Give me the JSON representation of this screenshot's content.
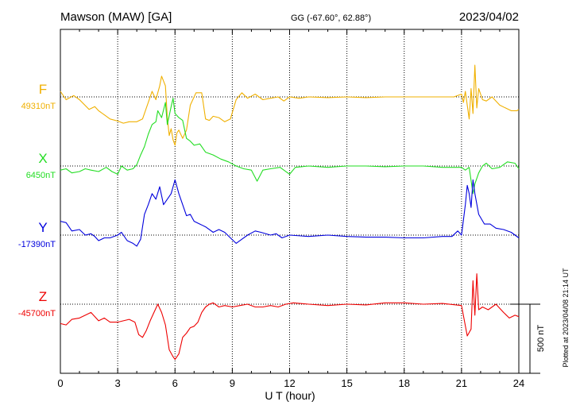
{
  "header": {
    "station": "Mawson (MAW)  [GA]",
    "coords": "GG (-67.60°,  62.88°)",
    "date": "2023/04/02"
  },
  "plotted_note": "Plotted at 2023/04/08 21:14 UT",
  "scale_label": "500 nT",
  "chart_data": {
    "type": "line",
    "xlabel": "U T (hour)",
    "xlim": [
      0,
      24
    ],
    "xticks": [
      "0",
      "3",
      "6",
      "9",
      "12",
      "15",
      "18",
      "21",
      "24"
    ],
    "scale_bar_nT": 500,
    "grid": "dotted vertical every 3 h, dotted baseline per component",
    "series": [
      {
        "name": "F",
        "baseline_label": "49310nT",
        "color": "#f0b000",
        "points": [
          [
            0,
            40
          ],
          [
            0.3,
            -20
          ],
          [
            0.7,
            10
          ],
          [
            1.0,
            -20
          ],
          [
            1.5,
            -90
          ],
          [
            1.8,
            -70
          ],
          [
            2.0,
            -100
          ],
          [
            2.3,
            -130
          ],
          [
            2.6,
            -160
          ],
          [
            3.0,
            -175
          ],
          [
            3.3,
            -190
          ],
          [
            3.6,
            -180
          ],
          [
            4.0,
            -180
          ],
          [
            4.3,
            -160
          ],
          [
            4.6,
            -40
          ],
          [
            4.8,
            40
          ],
          [
            5.0,
            -20
          ],
          [
            5.2,
            80
          ],
          [
            5.3,
            150
          ],
          [
            5.5,
            80
          ],
          [
            5.6,
            -150
          ],
          [
            5.7,
            -280
          ],
          [
            5.8,
            -230
          ],
          [
            5.9,
            -310
          ],
          [
            6.0,
            -350
          ],
          [
            6.1,
            -260
          ],
          [
            6.2,
            -240
          ],
          [
            6.4,
            -300
          ],
          [
            6.6,
            -240
          ],
          [
            6.8,
            -60
          ],
          [
            7.1,
            30
          ],
          [
            7.4,
            30
          ],
          [
            7.6,
            -160
          ],
          [
            7.8,
            -170
          ],
          [
            8.0,
            -140
          ],
          [
            8.3,
            -150
          ],
          [
            8.6,
            -180
          ],
          [
            8.9,
            -160
          ],
          [
            9.2,
            -20
          ],
          [
            9.5,
            30
          ],
          [
            9.8,
            -10
          ],
          [
            10.2,
            20
          ],
          [
            10.6,
            -20
          ],
          [
            11.0,
            -10
          ],
          [
            11.4,
            0
          ],
          [
            11.7,
            -30
          ],
          [
            12.0,
            0
          ],
          [
            12.5,
            -10
          ],
          [
            13.0,
            0
          ],
          [
            14.0,
            -5
          ],
          [
            15.0,
            0
          ],
          [
            16.0,
            -5
          ],
          [
            17.0,
            0
          ],
          [
            18.0,
            0
          ],
          [
            19.0,
            0
          ],
          [
            20.0,
            0
          ],
          [
            20.6,
            0
          ],
          [
            21.0,
            20
          ],
          [
            21.1,
            -40
          ],
          [
            21.2,
            40
          ],
          [
            21.4,
            -160
          ],
          [
            21.5,
            60
          ],
          [
            21.6,
            -120
          ],
          [
            21.7,
            230
          ],
          [
            21.8,
            -80
          ],
          [
            21.9,
            60
          ],
          [
            22.1,
            -20
          ],
          [
            22.3,
            -30
          ],
          [
            22.6,
            0
          ],
          [
            23.0,
            -60
          ],
          [
            23.3,
            -80
          ],
          [
            23.6,
            -100
          ],
          [
            23.9,
            -100
          ],
          [
            24.0,
            -90
          ]
        ]
      },
      {
        "name": "X",
        "baseline_label": "6450nT",
        "color": "#22dd22",
        "points": [
          [
            0,
            -30
          ],
          [
            0.3,
            -20
          ],
          [
            0.6,
            -50
          ],
          [
            1.0,
            -40
          ],
          [
            1.3,
            -20
          ],
          [
            1.6,
            -30
          ],
          [
            2.0,
            -40
          ],
          [
            2.4,
            -10
          ],
          [
            2.7,
            -40
          ],
          [
            3.0,
            -60
          ],
          [
            3.2,
            0
          ],
          [
            3.5,
            -30
          ],
          [
            3.8,
            -20
          ],
          [
            4.0,
            10
          ],
          [
            4.2,
            80
          ],
          [
            4.4,
            140
          ],
          [
            4.6,
            230
          ],
          [
            4.8,
            300
          ],
          [
            5.0,
            320
          ],
          [
            5.1,
            400
          ],
          [
            5.3,
            350
          ],
          [
            5.5,
            460
          ],
          [
            5.6,
            300
          ],
          [
            5.8,
            430
          ],
          [
            5.9,
            490
          ],
          [
            6.0,
            380
          ],
          [
            6.2,
            350
          ],
          [
            6.4,
            330
          ],
          [
            6.6,
            200
          ],
          [
            6.8,
            180
          ],
          [
            7.0,
            150
          ],
          [
            7.3,
            160
          ],
          [
            7.6,
            100
          ],
          [
            8.0,
            80
          ],
          [
            8.4,
            50
          ],
          [
            8.8,
            30
          ],
          [
            9.2,
            0
          ],
          [
            9.6,
            -20
          ],
          [
            10.0,
            -30
          ],
          [
            10.3,
            -110
          ],
          [
            10.6,
            -30
          ],
          [
            11.0,
            -20
          ],
          [
            11.5,
            -10
          ],
          [
            12.0,
            -60
          ],
          [
            12.3,
            -10
          ],
          [
            13.0,
            0
          ],
          [
            14.0,
            -10
          ],
          [
            15.0,
            0
          ],
          [
            16.0,
            0
          ],
          [
            17.0,
            -5
          ],
          [
            18.0,
            0
          ],
          [
            19.0,
            0
          ],
          [
            20.0,
            -10
          ],
          [
            21.0,
            -10
          ],
          [
            21.2,
            -30
          ],
          [
            21.4,
            -10
          ],
          [
            21.6,
            -200
          ],
          [
            21.7,
            -130
          ],
          [
            21.9,
            -50
          ],
          [
            22.1,
            0
          ],
          [
            22.3,
            20
          ],
          [
            22.6,
            -20
          ],
          [
            23.0,
            -10
          ],
          [
            23.4,
            30
          ],
          [
            23.8,
            20
          ],
          [
            24.0,
            -20
          ]
        ]
      },
      {
        "name": "Y",
        "baseline_label": "-17390nT",
        "color": "#0000dd",
        "points": [
          [
            0,
            100
          ],
          [
            0.3,
            90
          ],
          [
            0.6,
            30
          ],
          [
            1.0,
            40
          ],
          [
            1.3,
            0
          ],
          [
            1.6,
            10
          ],
          [
            1.8,
            -10
          ],
          [
            2.0,
            -40
          ],
          [
            2.3,
            -20
          ],
          [
            2.6,
            -20
          ],
          [
            3.0,
            0
          ],
          [
            3.2,
            20
          ],
          [
            3.5,
            -40
          ],
          [
            3.8,
            -60
          ],
          [
            4.0,
            -80
          ],
          [
            4.2,
            -30
          ],
          [
            4.4,
            150
          ],
          [
            4.6,
            220
          ],
          [
            4.8,
            300
          ],
          [
            5.0,
            260
          ],
          [
            5.2,
            350
          ],
          [
            5.4,
            220
          ],
          [
            5.6,
            260
          ],
          [
            5.8,
            300
          ],
          [
            6.0,
            400
          ],
          [
            6.2,
            300
          ],
          [
            6.4,
            220
          ],
          [
            6.6,
            140
          ],
          [
            6.8,
            150
          ],
          [
            7.0,
            100
          ],
          [
            7.3,
            80
          ],
          [
            7.6,
            60
          ],
          [
            8.0,
            20
          ],
          [
            8.3,
            40
          ],
          [
            8.6,
            20
          ],
          [
            8.9,
            -20
          ],
          [
            9.2,
            -60
          ],
          [
            9.5,
            -30
          ],
          [
            9.8,
            0
          ],
          [
            10.2,
            30
          ],
          [
            10.5,
            20
          ],
          [
            11.0,
            0
          ],
          [
            11.3,
            10
          ],
          [
            11.6,
            -20
          ],
          [
            12.0,
            0
          ],
          [
            13.0,
            -10
          ],
          [
            14.0,
            0
          ],
          [
            15.0,
            -10
          ],
          [
            16.0,
            -15
          ],
          [
            17.0,
            -15
          ],
          [
            18.0,
            -20
          ],
          [
            19.0,
            -20
          ],
          [
            20.0,
            -10
          ],
          [
            20.5,
            -10
          ],
          [
            20.8,
            30
          ],
          [
            21.0,
            0
          ],
          [
            21.2,
            220
          ],
          [
            21.3,
            360
          ],
          [
            21.4,
            300
          ],
          [
            21.5,
            200
          ],
          [
            21.6,
            400
          ],
          [
            21.7,
            300
          ],
          [
            21.9,
            150
          ],
          [
            22.2,
            80
          ],
          [
            22.5,
            80
          ],
          [
            22.8,
            50
          ],
          [
            23.2,
            40
          ],
          [
            23.6,
            20
          ],
          [
            24.0,
            -20
          ]
        ]
      },
      {
        "name": "Z",
        "baseline_label": "-45700nT",
        "color": "#ee0000",
        "points": [
          [
            0,
            -140
          ],
          [
            0.3,
            -150
          ],
          [
            0.6,
            -110
          ],
          [
            1.0,
            -100
          ],
          [
            1.3,
            -80
          ],
          [
            1.6,
            -60
          ],
          [
            2.0,
            -120
          ],
          [
            2.3,
            -100
          ],
          [
            2.6,
            -130
          ],
          [
            3.0,
            -130
          ],
          [
            3.3,
            -120
          ],
          [
            3.6,
            -110
          ],
          [
            3.9,
            -130
          ],
          [
            4.1,
            -220
          ],
          [
            4.3,
            -240
          ],
          [
            4.5,
            -190
          ],
          [
            4.7,
            -120
          ],
          [
            4.9,
            -60
          ],
          [
            5.1,
            0
          ],
          [
            5.3,
            -60
          ],
          [
            5.5,
            -150
          ],
          [
            5.7,
            -330
          ],
          [
            5.9,
            -380
          ],
          [
            6.0,
            -400
          ],
          [
            6.2,
            -360
          ],
          [
            6.4,
            -240
          ],
          [
            6.6,
            -210
          ],
          [
            6.8,
            -170
          ],
          [
            7.0,
            -160
          ],
          [
            7.2,
            -130
          ],
          [
            7.4,
            -60
          ],
          [
            7.6,
            -20
          ],
          [
            7.8,
            0
          ],
          [
            8.0,
            10
          ],
          [
            8.3,
            -20
          ],
          [
            8.6,
            -10
          ],
          [
            9.0,
            -20
          ],
          [
            9.4,
            -10
          ],
          [
            9.8,
            0
          ],
          [
            10.2,
            -20
          ],
          [
            10.6,
            -20
          ],
          [
            11.0,
            -10
          ],
          [
            11.4,
            -20
          ],
          [
            11.8,
            0
          ],
          [
            12.2,
            10
          ],
          [
            13.0,
            0
          ],
          [
            14.0,
            -10
          ],
          [
            15.0,
            0
          ],
          [
            16.0,
            -5
          ],
          [
            17.0,
            10
          ],
          [
            18.0,
            10
          ],
          [
            19.0,
            0
          ],
          [
            20.0,
            5
          ],
          [
            21.0,
            -10
          ],
          [
            21.3,
            -230
          ],
          [
            21.5,
            -180
          ],
          [
            21.6,
            170
          ],
          [
            21.7,
            -80
          ],
          [
            21.8,
            220
          ],
          [
            21.9,
            -40
          ],
          [
            22.1,
            -20
          ],
          [
            22.4,
            -40
          ],
          [
            22.8,
            0
          ],
          [
            23.2,
            -60
          ],
          [
            23.5,
            -100
          ],
          [
            23.8,
            -80
          ],
          [
            24.0,
            -90
          ]
        ]
      }
    ]
  }
}
